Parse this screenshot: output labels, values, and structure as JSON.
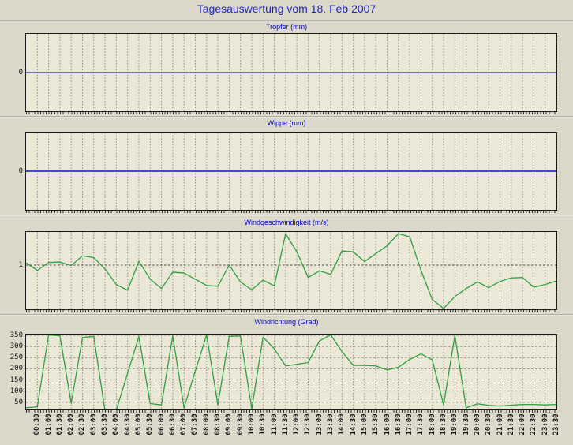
{
  "page": {
    "title": "Tagesauswertung vom 18. Feb 2007"
  },
  "colors": {
    "page_background": "#dcd9ca",
    "plot_background": "#ebe8d7",
    "plot_border": "#1a1a1a",
    "main_title_blue": "#2323c0",
    "panel_title_blue": "#0000cd",
    "wind_line_green": "#2f9e41",
    "tropfer_line_blue": "#0000b0",
    "wippe_line_blue": "#4646d2",
    "grid_gray": "#8e8c80",
    "unit_gridline_dark": "#4a4a44"
  },
  "x_axis": {
    "times": [
      "00:00",
      "00:30",
      "01:00",
      "01:30",
      "02:00",
      "02:30",
      "03:00",
      "03:30",
      "04:00",
      "04:30",
      "05:00",
      "05:30",
      "06:00",
      "06:30",
      "07:00",
      "07:30",
      "08:00",
      "08:30",
      "09:00",
      "09:30",
      "10:00",
      "10:30",
      "11:00",
      "11:30",
      "12:00",
      "12:30",
      "13:00",
      "13:30",
      "14:00",
      "14:30",
      "15:00",
      "15:30",
      "16:00",
      "16:30",
      "17:00",
      "17:30",
      "18:00",
      "18:30",
      "19:00",
      "19:30",
      "20:00",
      "20:30",
      "21:00",
      "21:30",
      "22:00",
      "22:30",
      "23:00",
      "23:30"
    ],
    "tick_labels": [
      "00:30",
      "01:00",
      "01:30",
      "02:00",
      "02:30",
      "03:00",
      "03:30",
      "04:00",
      "04:30",
      "05:00",
      "05:30",
      "06:00",
      "06:30",
      "07:00",
      "07:30",
      "08:00",
      "08:30",
      "09:00",
      "09:30",
      "10:00",
      "10:30",
      "11:00",
      "11:30",
      "12:00",
      "12:30",
      "13:00",
      "13:30",
      "14:00",
      "14:30",
      "15:00",
      "15:30",
      "16:00",
      "16:30",
      "17:00",
      "17:30",
      "18:00",
      "18:30",
      "19:00",
      "19:30",
      "20:00",
      "20:30",
      "21:00",
      "21:30",
      "22:00",
      "22:30",
      "23:00",
      "23:30"
    ],
    "interval_minutes": 30
  },
  "chart_data": [
    {
      "type": "line",
      "title": "Tropfer (mm)",
      "ylabel": "mm",
      "ylim": [
        -1,
        1
      ],
      "y_ticks": [
        0
      ],
      "h_grid": [],
      "h_grid_color": "#8e8c80",
      "line_color": "#0000b0",
      "line_width": 1,
      "values": [
        0,
        0,
        0,
        0,
        0,
        0,
        0,
        0,
        0,
        0,
        0,
        0,
        0,
        0,
        0,
        0,
        0,
        0,
        0,
        0,
        0,
        0,
        0,
        0,
        0,
        0,
        0,
        0,
        0,
        0,
        0,
        0,
        0,
        0,
        0,
        0,
        0,
        0,
        0,
        0,
        0,
        0,
        0,
        0,
        0,
        0,
        0,
        0
      ]
    },
    {
      "type": "line",
      "title": "Wippe (mm)",
      "ylabel": "mm",
      "ylim": [
        -1,
        1
      ],
      "y_ticks": [
        0
      ],
      "h_grid": [],
      "h_grid_color": "#8e8c80",
      "line_color": "#4646d2",
      "line_width": 2,
      "values": [
        0,
        0,
        0,
        0,
        0,
        0,
        0,
        0,
        0,
        0,
        0,
        0,
        0,
        0,
        0,
        0,
        0,
        0,
        0,
        0,
        0,
        0,
        0,
        0,
        0,
        0,
        0,
        0,
        0,
        0,
        0,
        0,
        0,
        0,
        0,
        0,
        0,
        0,
        0,
        0,
        0,
        0,
        0,
        0,
        0,
        0,
        0,
        0
      ]
    },
    {
      "type": "line",
      "title": "Windgeschwindigkeit (m/s)",
      "ylabel": "m/s",
      "ylim": [
        0,
        1.75
      ],
      "y_ticks": [
        1
      ],
      "h_grid": [
        1
      ],
      "h_grid_color": "#4a4a44",
      "line_color": "#2f9e41",
      "line_width": 1.3,
      "values": [
        1.05,
        0.88,
        1.06,
        1.07,
        0.99,
        1.21,
        1.17,
        0.91,
        0.56,
        0.43,
        1.09,
        0.68,
        0.47,
        0.84,
        0.82,
        0.68,
        0.54,
        0.52,
        1.0,
        0.62,
        0.44,
        0.66,
        0.53,
        1.71,
        1.3,
        0.72,
        0.87,
        0.79,
        1.32,
        1.3,
        1.08,
        1.26,
        1.44,
        1.71,
        1.64,
        0.88,
        0.22,
        0.02,
        0.29,
        0.47,
        0.62,
        0.49,
        0.63,
        0.71,
        0.72,
        0.5,
        0.56,
        0.64
      ]
    },
    {
      "type": "line",
      "title": "Windrichtung (Grad)",
      "ylabel": "Grad",
      "ylim": [
        17.5,
        353.5
      ],
      "y_ticks": [
        350,
        300,
        250,
        200,
        150,
        100,
        50
      ],
      "h_grid": [
        350,
        300,
        250,
        200,
        150,
        100,
        50
      ],
      "h_grid_color": "#8e8c80",
      "line_color": "#2f9e41",
      "line_width": 1.3,
      "values": [
        25,
        30,
        352,
        348,
        45,
        340,
        345,
        10,
        15,
        180,
        345,
        44,
        38,
        348,
        25,
        190,
        352,
        38,
        345,
        347,
        20,
        342,
        290,
        213,
        220,
        228,
        325,
        352,
        277,
        215,
        215,
        213,
        195,
        207,
        242,
        267,
        240,
        38,
        349,
        25,
        43,
        36,
        33,
        37,
        40,
        40,
        38,
        40
      ]
    }
  ]
}
